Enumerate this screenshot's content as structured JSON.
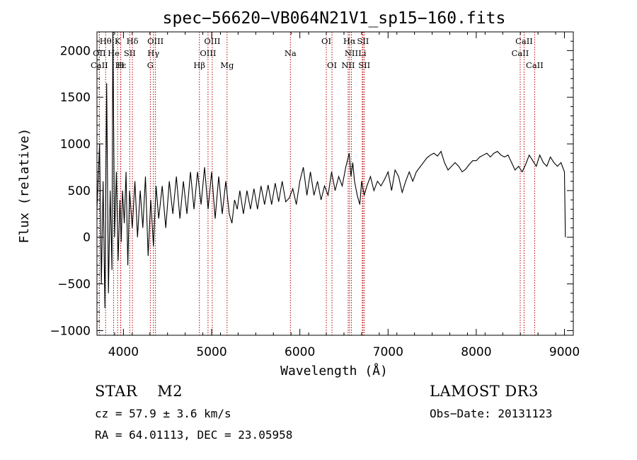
{
  "chart_data": {
    "type": "line",
    "title": "spec−56620−VB064N21V1_sp15−160.fits",
    "xlabel": "Wavelength (Å)",
    "ylabel": "Flux (relative)",
    "xlim": [
      3700,
      9100
    ],
    "ylim": [
      -1050,
      2200
    ],
    "xticks": [
      4000,
      5000,
      6000,
      7000,
      8000,
      9000
    ],
    "yticks": [
      -1000,
      -500,
      0,
      500,
      1000,
      1500,
      2000
    ],
    "xtick_labels": [
      "4000",
      "5000",
      "6000",
      "7000",
      "8000",
      "9000"
    ],
    "ytick_labels": [
      "−1000",
      "−500",
      "0",
      "500",
      "1000",
      "1500",
      "2000"
    ],
    "line_color": "#000000",
    "marker_color": "#b30000",
    "lines": [
      {
        "label": "Hθ",
        "wave": 3798,
        "row": 0
      },
      {
        "label": "K",
        "wave": 3934,
        "row": 0
      },
      {
        "label": "Hδ",
        "wave": 4102,
        "row": 0
      },
      {
        "label": "OIII",
        "wave": 4363,
        "row": 0
      },
      {
        "label": "OIII",
        "wave": 5007,
        "row": 0
      },
      {
        "label": "OI",
        "wave": 6300,
        "row": 0
      },
      {
        "label": "Hα",
        "wave": 6563,
        "row": 0
      },
      {
        "label": "SII",
        "wave": 6716,
        "row": 0
      },
      {
        "label": "CaII",
        "wave": 8542,
        "row": 0
      },
      {
        "label": "OII",
        "wave": 3727,
        "row": 1
      },
      {
        "label": "He",
        "wave": 3889,
        "row": 1
      },
      {
        "label": "SII",
        "wave": 4072,
        "row": 1
      },
      {
        "label": "Hγ",
        "wave": 4340,
        "row": 1
      },
      {
        "label": "OIII",
        "wave": 4959,
        "row": 1
      },
      {
        "label": "Na",
        "wave": 5893,
        "row": 1
      },
      {
        "label": "NII",
        "wave": 6584,
        "row": 1
      },
      {
        "label": "Li",
        "wave": 6708,
        "row": 1
      },
      {
        "label": "CaII",
        "wave": 8498,
        "row": 1
      },
      {
        "label": "CaII",
        "wave": 3727,
        "row": 2
      },
      {
        "label": "Hε",
        "wave": 3970,
        "row": 2
      },
      {
        "label": "H",
        "wave": 3968,
        "row": 2
      },
      {
        "label": "G",
        "wave": 4305,
        "row": 2
      },
      {
        "label": "Hβ",
        "wave": 4861,
        "row": 2
      },
      {
        "label": "Mg",
        "wave": 5175,
        "row": 2
      },
      {
        "label": "OI",
        "wave": 6364,
        "row": 2
      },
      {
        "label": "NII",
        "wave": 6548,
        "row": 2
      },
      {
        "label": "SII",
        "wave": 6731,
        "row": 2
      },
      {
        "label": "CaII",
        "wave": 8662,
        "row": 2
      }
    ],
    "spectrum": [
      [
        3700,
        300
      ],
      [
        3730,
        1000
      ],
      [
        3750,
        -500
      ],
      [
        3770,
        600
      ],
      [
        3790,
        -760
      ],
      [
        3810,
        1650
      ],
      [
        3830,
        -600
      ],
      [
        3850,
        500
      ],
      [
        3870,
        -350
      ],
      [
        3880,
        2200
      ],
      [
        3900,
        0
      ],
      [
        3920,
        700
      ],
      [
        3940,
        -250
      ],
      [
        3960,
        400
      ],
      [
        3975,
        -50
      ],
      [
        3990,
        500
      ],
      [
        4010,
        150
      ],
      [
        4030,
        700
      ],
      [
        4050,
        -300
      ],
      [
        4070,
        500
      ],
      [
        4100,
        100
      ],
      [
        4130,
        600
      ],
      [
        4160,
        0
      ],
      [
        4190,
        500
      ],
      [
        4220,
        100
      ],
      [
        4250,
        650
      ],
      [
        4280,
        -200
      ],
      [
        4310,
        400
      ],
      [
        4340,
        -100
      ],
      [
        4370,
        550
      ],
      [
        4400,
        200
      ],
      [
        4440,
        550
      ],
      [
        4480,
        100
      ],
      [
        4520,
        600
      ],
      [
        4560,
        250
      ],
      [
        4600,
        650
      ],
      [
        4640,
        200
      ],
      [
        4680,
        600
      ],
      [
        4720,
        250
      ],
      [
        4760,
        700
      ],
      [
        4800,
        300
      ],
      [
        4840,
        700
      ],
      [
        4880,
        350
      ],
      [
        4920,
        750
      ],
      [
        4960,
        300
      ],
      [
        5000,
        700
      ],
      [
        5040,
        200
      ],
      [
        5080,
        650
      ],
      [
        5120,
        250
      ],
      [
        5160,
        600
      ],
      [
        5200,
        250
      ],
      [
        5230,
        150
      ],
      [
        5260,
        400
      ],
      [
        5290,
        300
      ],
      [
        5320,
        500
      ],
      [
        5360,
        250
      ],
      [
        5400,
        500
      ],
      [
        5440,
        300
      ],
      [
        5480,
        520
      ],
      [
        5520,
        300
      ],
      [
        5560,
        550
      ],
      [
        5600,
        350
      ],
      [
        5640,
        560
      ],
      [
        5680,
        350
      ],
      [
        5720,
        580
      ],
      [
        5760,
        380
      ],
      [
        5800,
        600
      ],
      [
        5840,
        380
      ],
      [
        5880,
        420
      ],
      [
        5920,
        520
      ],
      [
        5960,
        350
      ],
      [
        6000,
        600
      ],
      [
        6040,
        750
      ],
      [
        6080,
        450
      ],
      [
        6120,
        700
      ],
      [
        6160,
        450
      ],
      [
        6200,
        600
      ],
      [
        6240,
        400
      ],
      [
        6280,
        550
      ],
      [
        6320,
        450
      ],
      [
        6360,
        700
      ],
      [
        6400,
        500
      ],
      [
        6440,
        650
      ],
      [
        6480,
        550
      ],
      [
        6520,
        750
      ],
      [
        6560,
        900
      ],
      [
        6580,
        650
      ],
      [
        6600,
        800
      ],
      [
        6620,
        600
      ],
      [
        6650,
        450
      ],
      [
        6680,
        350
      ],
      [
        6700,
        600
      ],
      [
        6730,
        450
      ],
      [
        6760,
        550
      ],
      [
        6800,
        650
      ],
      [
        6840,
        500
      ],
      [
        6880,
        600
      ],
      [
        6920,
        550
      ],
      [
        6960,
        620
      ],
      [
        7000,
        700
      ],
      [
        7040,
        500
      ],
      [
        7080,
        720
      ],
      [
        7120,
        650
      ],
      [
        7160,
        480
      ],
      [
        7200,
        600
      ],
      [
        7240,
        700
      ],
      [
        7280,
        600
      ],
      [
        7320,
        700
      ],
      [
        7360,
        750
      ],
      [
        7400,
        800
      ],
      [
        7440,
        850
      ],
      [
        7480,
        880
      ],
      [
        7520,
        900
      ],
      [
        7560,
        870
      ],
      [
        7600,
        920
      ],
      [
        7640,
        800
      ],
      [
        7680,
        720
      ],
      [
        7720,
        760
      ],
      [
        7760,
        800
      ],
      [
        7800,
        760
      ],
      [
        7840,
        700
      ],
      [
        7880,
        730
      ],
      [
        7920,
        780
      ],
      [
        7960,
        820
      ],
      [
        8000,
        820
      ],
      [
        8040,
        860
      ],
      [
        8080,
        880
      ],
      [
        8120,
        900
      ],
      [
        8160,
        860
      ],
      [
        8200,
        900
      ],
      [
        8240,
        920
      ],
      [
        8280,
        880
      ],
      [
        8320,
        860
      ],
      [
        8360,
        880
      ],
      [
        8400,
        800
      ],
      [
        8440,
        720
      ],
      [
        8480,
        760
      ],
      [
        8520,
        700
      ],
      [
        8560,
        780
      ],
      [
        8600,
        880
      ],
      [
        8640,
        820
      ],
      [
        8680,
        760
      ],
      [
        8720,
        880
      ],
      [
        8760,
        800
      ],
      [
        8800,
        760
      ],
      [
        8840,
        860
      ],
      [
        8880,
        800
      ],
      [
        8920,
        760
      ],
      [
        8960,
        800
      ],
      [
        9000,
        700
      ],
      [
        9010,
        0
      ]
    ]
  },
  "info": {
    "object_class": "STAR",
    "subclass": "M2",
    "survey": "LAMOST DR3",
    "cz": "cz = 57.9 ± 3.6 km/s",
    "obs_date": "Obs−Date: 20131123",
    "coords": "RA =  64.01113, DEC =  23.05958"
  }
}
